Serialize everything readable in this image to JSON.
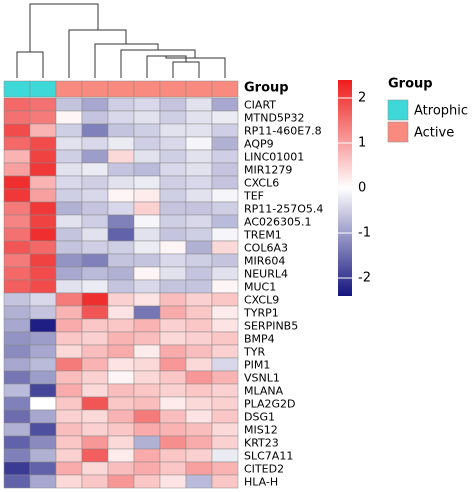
{
  "chart_data": {
    "type": "heatmap",
    "rows": [
      "CIART",
      "MTND5P32",
      "RP11-460E7.8",
      "AQP9",
      "LINC01001",
      "MIR1279",
      "CXCL6",
      "TEF",
      "RP11-257O5.4",
      "AC026305.1",
      "TREM1",
      "COL6A3",
      "MIR604",
      "NEURL4",
      "MUC1",
      "CXCL9",
      "TYRP1",
      "SERPINB5",
      "BMP4",
      "TYR",
      "PIM1",
      "VSNL1",
      "MLANA",
      "PLA2G2D",
      "DSG1",
      "MIS12",
      "KRT23",
      "SLC7A11",
      "CITED2",
      "HLA-H"
    ],
    "values": [
      [
        1.6,
        1.5,
        -0.6,
        -0.9,
        -0.5,
        -0.4,
        -0.6,
        -0.3,
        -0.9
      ],
      [
        1.5,
        1.4,
        0.1,
        -0.6,
        -0.4,
        -0.3,
        -0.5,
        -0.3,
        -0.2
      ],
      [
        1.9,
        0.8,
        -0.5,
        -1.3,
        -0.6,
        -0.5,
        -0.3,
        -0.3,
        -0.5
      ],
      [
        1.6,
        1.9,
        -0.3,
        -0.4,
        -0.2,
        -0.5,
        -0.4,
        -0.1,
        -0.8
      ],
      [
        0.8,
        2.0,
        -0.5,
        -1.0,
        0.4,
        -0.3,
        -0.5,
        -0.3,
        -0.5
      ],
      [
        1.0,
        2.1,
        -0.3,
        -0.2,
        -0.6,
        -0.7,
        -0.4,
        -0.3,
        -0.6
      ],
      [
        2.2,
        0.8,
        -0.4,
        -0.5,
        -0.3,
        -0.2,
        -0.5,
        -0.4,
        -0.6
      ],
      [
        2.1,
        1.0,
        -0.5,
        -0.4,
        0.1,
        0.2,
        -0.5,
        -0.3,
        -0.1
      ],
      [
        1.4,
        2.1,
        -0.8,
        -0.6,
        -0.4,
        0.5,
        -0.6,
        -0.6,
        -0.5
      ],
      [
        1.3,
        2.0,
        -0.3,
        -0.5,
        -1.3,
        -0.1,
        -0.5,
        -0.4,
        -0.7
      ],
      [
        1.5,
        2.2,
        -0.6,
        -0.3,
        -1.6,
        -0.3,
        -0.6,
        -0.5,
        -0.1
      ],
      [
        1.8,
        1.6,
        -0.6,
        -0.5,
        -0.5,
        -0.2,
        0.1,
        -0.8,
        0.4
      ],
      [
        1.4,
        2.0,
        -1.1,
        -1.3,
        -0.6,
        -0.6,
        -0.4,
        -0.5,
        -0.6
      ],
      [
        1.6,
        1.9,
        -0.9,
        -0.7,
        -0.8,
        0.1,
        -0.3,
        -0.6,
        -0.3
      ],
      [
        1.7,
        1.9,
        -0.3,
        -0.2,
        -0.6,
        -0.4,
        -0.6,
        -0.6,
        0.1
      ],
      [
        -0.6,
        -0.4,
        1.4,
        2.2,
        0.5,
        0.3,
        0.7,
        0.5,
        0.6
      ],
      [
        -0.8,
        -0.6,
        0.8,
        1.8,
        0.3,
        -1.4,
        0.9,
        0.6,
        0.2
      ],
      [
        -0.9,
        -2.3,
        0.9,
        0.6,
        0.6,
        0.8,
        0.5,
        0.6,
        0.3
      ],
      [
        -1.1,
        -1.0,
        0.6,
        0.5,
        0.8,
        0.7,
        0.4,
        0.5,
        0.6
      ],
      [
        -1.2,
        -0.9,
        0.4,
        0.7,
        0.9,
        0.2,
        0.9,
        0.7,
        0.5
      ],
      [
        -0.9,
        -0.7,
        1.4,
        0.8,
        0.3,
        0.4,
        1.1,
        0.4,
        -0.4
      ],
      [
        -1.4,
        -1.0,
        0.7,
        0.5,
        0.1,
        0.4,
        0.6,
        1.1,
        0.8
      ],
      [
        -0.7,
        -1.9,
        0.9,
        0.4,
        0.7,
        0.6,
        0.5,
        0.6,
        0.5
      ],
      [
        -1.3,
        0.0,
        0.6,
        1.8,
        0.6,
        0.7,
        0.2,
        0.4,
        0.5
      ],
      [
        -1.5,
        -0.9,
        0.5,
        0.4,
        0.8,
        1.4,
        0.7,
        0.3,
        0.6
      ],
      [
        -0.8,
        -1.8,
        0.7,
        0.5,
        0.6,
        0.9,
        0.8,
        0.7,
        0.4
      ],
      [
        -1.6,
        -1.2,
        0.6,
        1.1,
        0.4,
        -0.8,
        1.2,
        0.9,
        0.5
      ],
      [
        -1.3,
        -0.8,
        0.5,
        1.7,
        0.2,
        0.9,
        0.6,
        0.5,
        -0.2
      ],
      [
        -2.0,
        -1.6,
        0.9,
        0.4,
        0.7,
        0.9,
        0.6,
        1.0,
        0.8
      ],
      [
        -1.6,
        -0.9,
        0.4,
        0.6,
        1.1,
        0.6,
        0.3,
        -0.7,
        0.6
      ]
    ],
    "zlim": [
      -2.4,
      2.4
    ],
    "zticks": [
      -2,
      -1,
      0,
      1,
      2
    ],
    "colorscale": [
      "#14147f",
      "#ffffff",
      "#ee1c1c"
    ],
    "annotation": {
      "title": "Group",
      "levels": [
        {
          "name": "Atrophic",
          "color": "#3fd8d8"
        },
        {
          "name": "Active",
          "color": "#f88a80"
        }
      ],
      "column_levels": [
        0,
        0,
        1,
        1,
        1,
        1,
        1,
        1,
        1
      ]
    }
  }
}
